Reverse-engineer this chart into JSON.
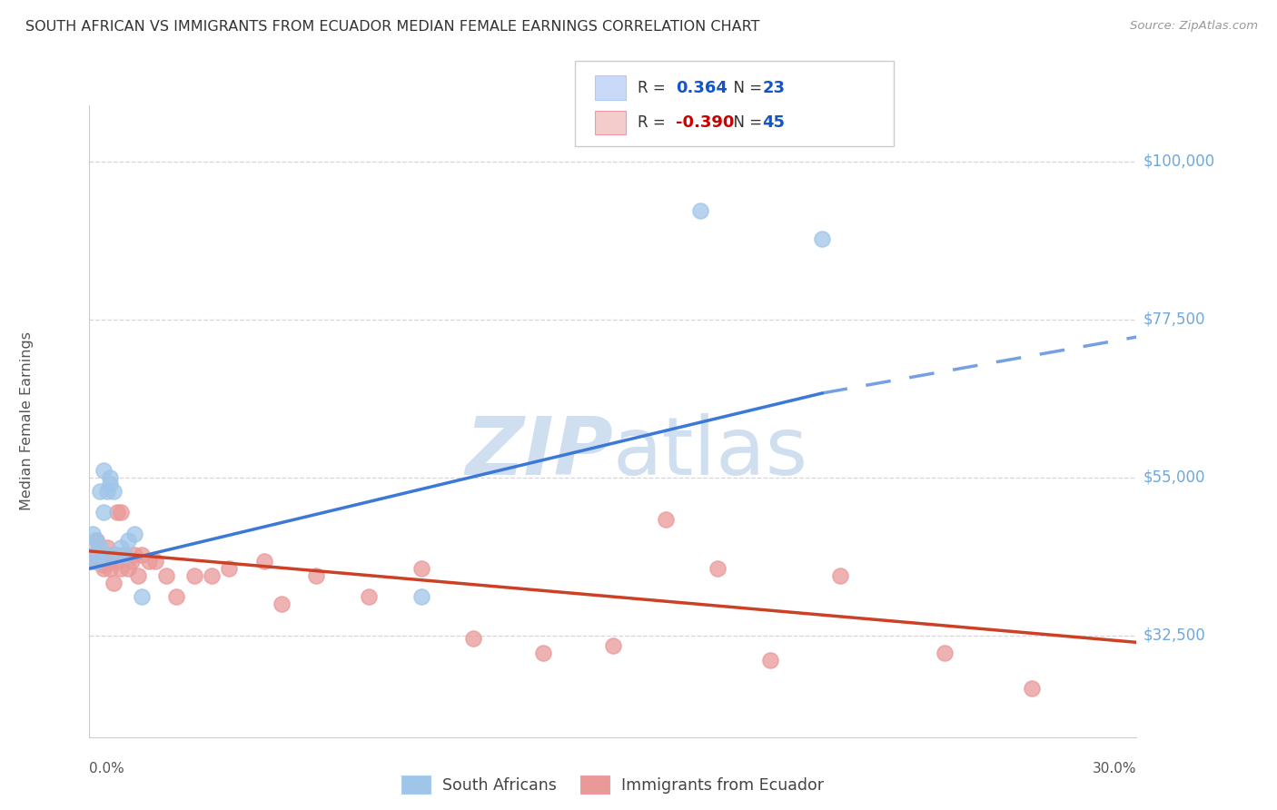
{
  "title": "SOUTH AFRICAN VS IMMIGRANTS FROM ECUADOR MEDIAN FEMALE EARNINGS CORRELATION CHART",
  "source": "Source: ZipAtlas.com",
  "ylabel": "Median Female Earnings",
  "ytick_labels": [
    "$100,000",
    "$77,500",
    "$55,000",
    "$32,500"
  ],
  "ytick_values": [
    100000,
    77500,
    55000,
    32500
  ],
  "ymin": 18000,
  "ymax": 108000,
  "xmin": 0.0,
  "xmax": 0.3,
  "watermark_zip": "ZIP",
  "watermark_atlas": "atlas",
  "legend_blue_r": "0.364",
  "legend_blue_n": "23",
  "legend_pink_r": "-0.390",
  "legend_pink_n": "45",
  "color_blue": "#9fc5e8",
  "color_pink": "#ea9999",
  "color_line_blue": "#3c78d8",
  "color_line_pink": "#cc4125",
  "color_axis_label": "#6fa8dc",
  "color_grid": "#cccccc",
  "color_title": "#333333",
  "color_source": "#999999",
  "color_legend_text": "#333333",
  "color_legend_r_blue": "#1155cc",
  "color_legend_r_pink": "#cc0000",
  "color_legend_n": "#1155cc",
  "color_watermark": "#d0dff0",
  "blue_scatter_x": [
    0.001,
    0.001,
    0.002,
    0.002,
    0.003,
    0.003,
    0.003,
    0.004,
    0.004,
    0.005,
    0.005,
    0.006,
    0.006,
    0.007,
    0.008,
    0.009,
    0.01,
    0.011,
    0.013,
    0.015,
    0.175,
    0.21,
    0.095
  ],
  "blue_scatter_y": [
    47000,
    44000,
    46000,
    43000,
    44000,
    45000,
    53000,
    56000,
    50000,
    53000,
    44000,
    55000,
    54000,
    53000,
    44000,
    45000,
    44000,
    46000,
    47000,
    38000,
    93000,
    89000,
    38000
  ],
  "pink_scatter_x": [
    0.001,
    0.001,
    0.002,
    0.002,
    0.003,
    0.003,
    0.004,
    0.004,
    0.005,
    0.005,
    0.006,
    0.006,
    0.007,
    0.007,
    0.008,
    0.008,
    0.009,
    0.009,
    0.01,
    0.011,
    0.012,
    0.013,
    0.014,
    0.015,
    0.017,
    0.019,
    0.022,
    0.025,
    0.03,
    0.035,
    0.04,
    0.05,
    0.055,
    0.065,
    0.08,
    0.095,
    0.11,
    0.13,
    0.15,
    0.165,
    0.18,
    0.195,
    0.215,
    0.245,
    0.27
  ],
  "pink_scatter_y": [
    44000,
    43000,
    46000,
    43000,
    44000,
    43000,
    42500,
    42000,
    45000,
    43000,
    43000,
    42000,
    44000,
    40000,
    50000,
    43000,
    50000,
    42000,
    44000,
    42000,
    43000,
    44000,
    41000,
    44000,
    43000,
    43000,
    41000,
    38000,
    41000,
    41000,
    42000,
    43000,
    37000,
    41000,
    38000,
    42000,
    32000,
    30000,
    31000,
    49000,
    42000,
    29000,
    41000,
    30000,
    25000
  ],
  "blue_line_x": [
    0.0,
    0.3
  ],
  "blue_line_solid_end_x": 0.21,
  "blue_line_y_at_0": 42000,
  "blue_line_y_at_21": 67000,
  "blue_line_y_at_30": 75000,
  "pink_line_x": [
    0.0,
    0.3
  ],
  "pink_line_y": [
    44500,
    31500
  ]
}
